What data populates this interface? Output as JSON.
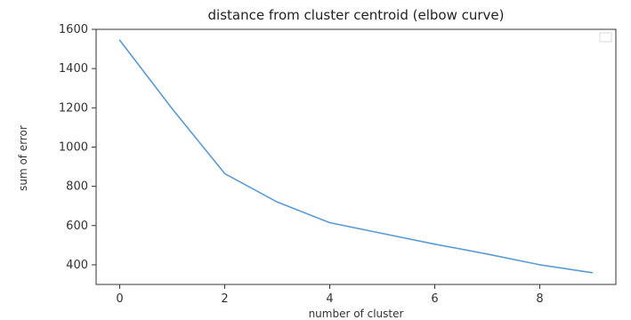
{
  "chart_data": {
    "type": "line",
    "title": "distance from cluster centroid (elbow curve)",
    "xlabel": "number of cluster",
    "ylabel": "sum of error",
    "x": [
      0,
      1,
      2,
      3,
      4,
      5,
      6,
      7,
      8,
      9
    ],
    "series": [
      {
        "values": [
          1545,
          1195,
          865,
          720,
          615,
          560,
          505,
          455,
          400,
          360
        ],
        "color": "#5b9bd5"
      }
    ],
    "xticks": [
      0,
      2,
      4,
      6,
      8
    ],
    "yticks": [
      400,
      600,
      800,
      1000,
      1200,
      1400,
      1600
    ],
    "xlim": [
      -0.45,
      9.45
    ],
    "ylim": [
      300,
      1600
    ],
    "grid": false,
    "legend": "upper right, empty box"
  }
}
